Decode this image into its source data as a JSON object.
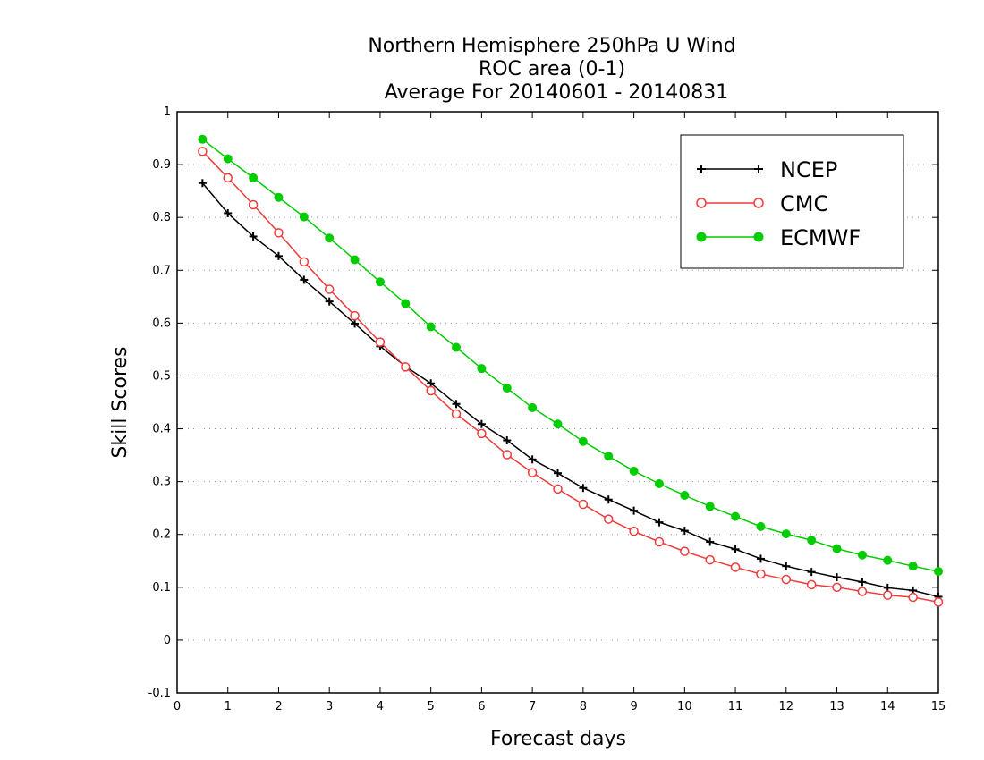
{
  "chart_data": {
    "type": "line",
    "title": [
      "Northern Hemisphere 250hPa U Wind",
      "ROC area (0-1)",
      "Average For 20140601 - 20140831"
    ],
    "xlabel": "Forecast days",
    "ylabel": "Skill Scores",
    "xlim": [
      0,
      15
    ],
    "ylim": [
      -0.1,
      1
    ],
    "xticks": [
      0,
      1,
      2,
      3,
      4,
      5,
      6,
      7,
      8,
      9,
      10,
      11,
      12,
      13,
      14,
      15
    ],
    "xtick_labels": [
      "0",
      "1",
      "2",
      "3",
      "4",
      "5",
      "6",
      "7",
      "8",
      "9",
      "10",
      "11",
      "12",
      "13",
      "14",
      "15"
    ],
    "yticks": [
      -0.1,
      0,
      0.1,
      0.2,
      0.3,
      0.4,
      0.5,
      0.6,
      0.7,
      0.8,
      0.9,
      1
    ],
    "ytick_labels": [
      "-0.1",
      "0",
      "0.1",
      "0.2",
      "0.3",
      "0.4",
      "0.5",
      "0.6",
      "0.7",
      "0.8",
      "0.9",
      "1"
    ],
    "grid": "horizontal-dotted",
    "legend_position": "top-right",
    "x": [
      0.5,
      1,
      1.5,
      2,
      2.5,
      3,
      3.5,
      4,
      4.5,
      5,
      5.5,
      6,
      6.5,
      7,
      7.5,
      8,
      8.5,
      9,
      9.5,
      10,
      10.5,
      11,
      11.5,
      12,
      12.5,
      13,
      13.5,
      14,
      14.5,
      15
    ],
    "series": [
      {
        "name": "NCEP",
        "color": "#000000",
        "marker": "plus",
        "values": [
          0.865,
          0.808,
          0.764,
          0.727,
          0.682,
          0.641,
          0.599,
          0.556,
          0.518,
          0.486,
          0.447,
          0.409,
          0.378,
          0.342,
          0.316,
          0.288,
          0.266,
          0.245,
          0.223,
          0.207,
          0.186,
          0.172,
          0.154,
          0.14,
          0.129,
          0.119,
          0.11,
          0.099,
          0.094,
          0.082
        ]
      },
      {
        "name": "CMC",
        "color": "#ee3b3b",
        "marker": "open-circle",
        "values": [
          0.925,
          0.875,
          0.824,
          0.771,
          0.716,
          0.664,
          0.614,
          0.564,
          0.517,
          0.472,
          0.428,
          0.391,
          0.351,
          0.317,
          0.286,
          0.257,
          0.229,
          0.206,
          0.186,
          0.168,
          0.152,
          0.138,
          0.125,
          0.115,
          0.105,
          0.1,
          0.092,
          0.085,
          0.081,
          0.072
        ]
      },
      {
        "name": "ECMWF",
        "color": "#00cc00",
        "marker": "filled-circle",
        "values": [
          0.948,
          0.911,
          0.875,
          0.838,
          0.801,
          0.761,
          0.72,
          0.678,
          0.637,
          0.593,
          0.554,
          0.514,
          0.477,
          0.44,
          0.409,
          0.376,
          0.348,
          0.32,
          0.296,
          0.274,
          0.253,
          0.234,
          0.215,
          0.201,
          0.189,
          0.173,
          0.161,
          0.151,
          0.14,
          0.13
        ]
      }
    ]
  }
}
